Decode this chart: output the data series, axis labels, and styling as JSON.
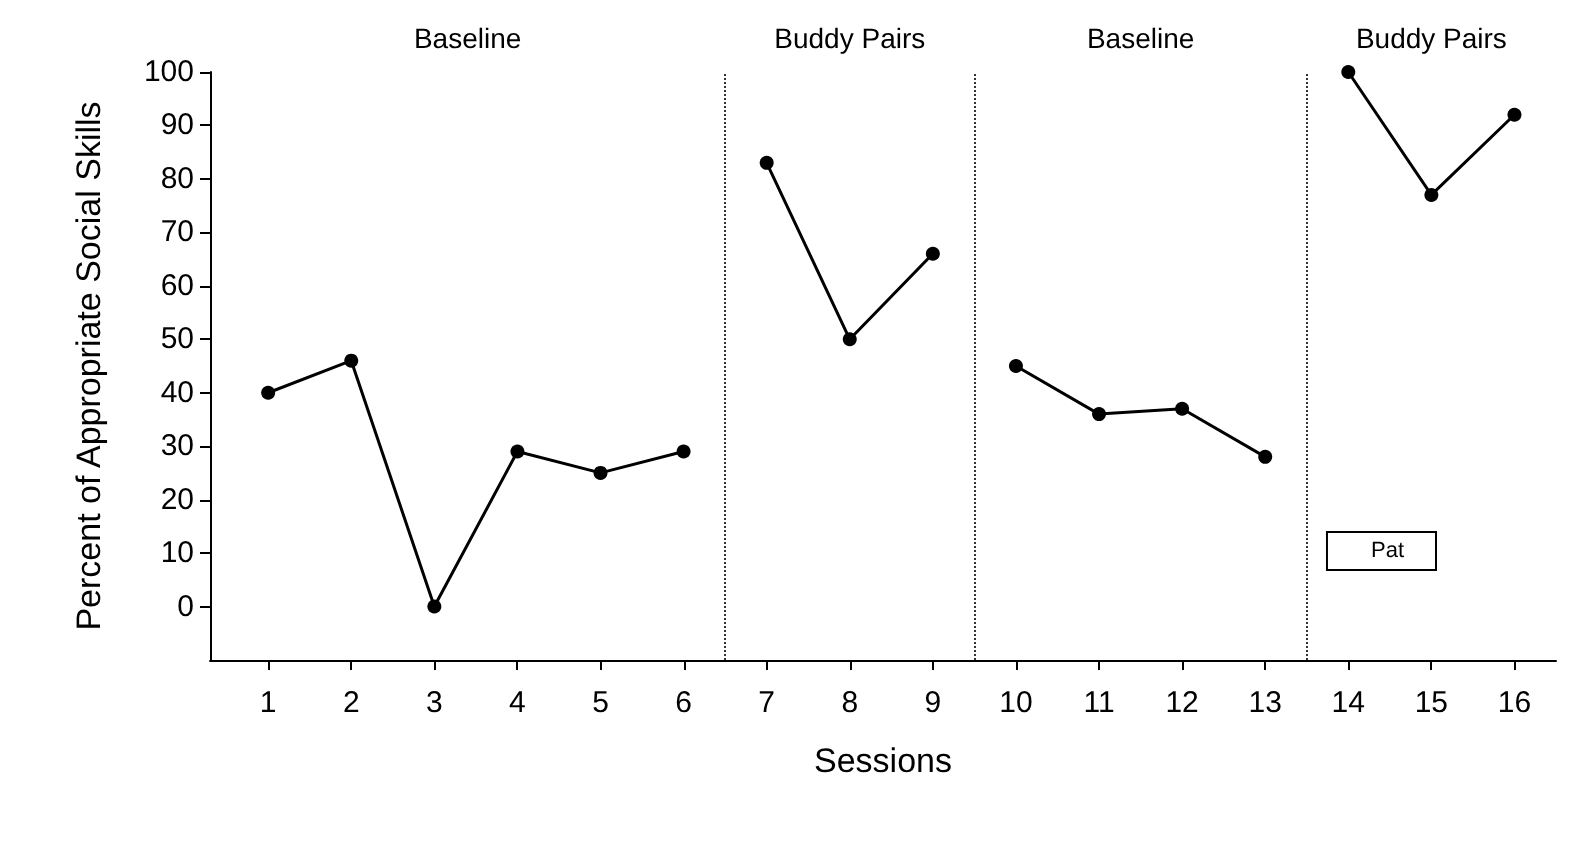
{
  "chart_data": {
    "type": "line",
    "xlabel": "Sessions",
    "ylabel": "Percent of Appropriate Social Skills",
    "xlim": [
      0.3,
      16.5
    ],
    "xticks": [
      1,
      2,
      3,
      4,
      5,
      6,
      7,
      8,
      9,
      10,
      11,
      12,
      13,
      14,
      15,
      16
    ],
    "ylim": [
      -10,
      100
    ],
    "yticks": [
      0,
      10,
      20,
      30,
      40,
      50,
      60,
      70,
      80,
      90,
      100
    ],
    "series": [
      {
        "name": "Pat",
        "color": "#000000",
        "x": [
          1,
          2,
          3,
          4,
          5,
          6
        ],
        "values": [
          40,
          46,
          0,
          29,
          25,
          29
        ]
      },
      {
        "color": "#000000",
        "x": [
          7,
          8,
          9
        ],
        "values": [
          83,
          50,
          66
        ]
      },
      {
        "color": "#000000",
        "x": [
          10,
          11,
          12,
          13
        ],
        "values": [
          45,
          36,
          37,
          28
        ]
      },
      {
        "color": "#000000",
        "x": [
          14,
          15,
          16
        ],
        "values": [
          100,
          77,
          92
        ]
      }
    ],
    "ref_lines": [
      {
        "axis": "x",
        "value": 6.5,
        "line_style": "dotted"
      },
      {
        "axis": "x",
        "value": 9.5,
        "line_style": "dotted"
      },
      {
        "axis": "x",
        "value": 13.5,
        "line_style": "dotted"
      }
    ],
    "annotations": [
      "Baseline",
      "Buddy Pairs",
      "Baseline",
      "Buddy Pairs"
    ],
    "marker": "circle",
    "line_style": "solid",
    "grid": false,
    "legend": "bottom right"
  }
}
